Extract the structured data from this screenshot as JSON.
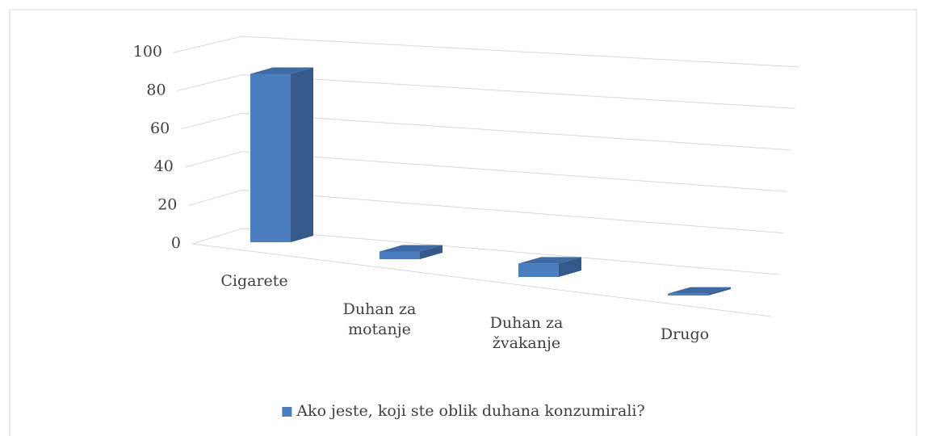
{
  "chart_data": {
    "type": "bar3d",
    "categories": [
      "Cigarete",
      "Duhan za motanje",
      "Duhan za žvakanje",
      "Drugo"
    ],
    "series": [
      {
        "name": "Ako jeste, koji ste oblik duhana konzumirali?",
        "color": "#4a7ebf",
        "values": [
          88,
          4,
          7,
          1
        ]
      }
    ],
    "ylim": [
      0,
      100
    ],
    "yticks": [
      0,
      20,
      40,
      60,
      80,
      100
    ],
    "grid": true,
    "legend": "bottom"
  }
}
